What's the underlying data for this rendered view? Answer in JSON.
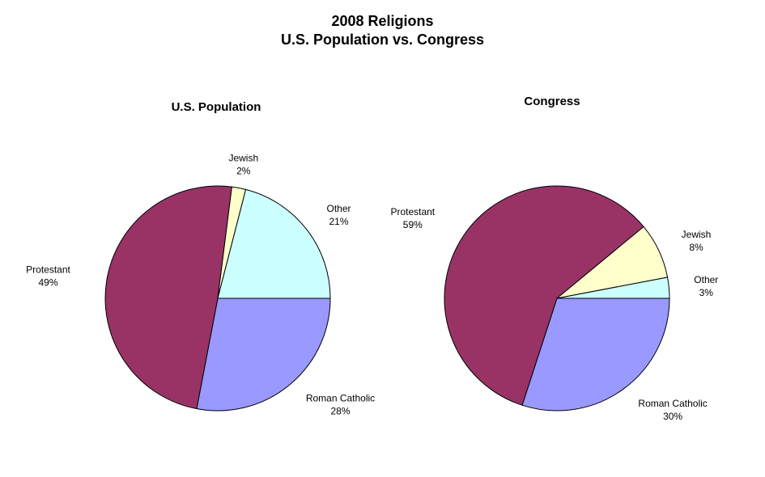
{
  "title": "2008 Religions",
  "subtitle": "U.S. Population vs. Congress",
  "chart_data": [
    {
      "type": "pie",
      "title": "U.S. Population",
      "slices": [
        {
          "name": "Other",
          "value": 21,
          "label": "21%",
          "color": "#CCFFFF"
        },
        {
          "name": "Jewish",
          "value": 2,
          "label": "2%",
          "color": "#FFFFCC"
        },
        {
          "name": "Protestant",
          "value": 49,
          "label": "49%",
          "color": "#993366"
        },
        {
          "name": "Roman Catholic",
          "value": 28,
          "label": "28%",
          "color": "#9999FF"
        }
      ]
    },
    {
      "type": "pie",
      "title": "Congress",
      "slices": [
        {
          "name": "Other",
          "value": 3,
          "label": "3%",
          "color": "#CCFFFF"
        },
        {
          "name": "Jewish",
          "value": 8,
          "label": "8%",
          "color": "#FFFFCC"
        },
        {
          "name": "Protestant",
          "value": 59,
          "label": "59%",
          "color": "#993366"
        },
        {
          "name": "Roman Catholic",
          "value": 30,
          "label": "30%",
          "color": "#9999FF"
        }
      ]
    }
  ]
}
